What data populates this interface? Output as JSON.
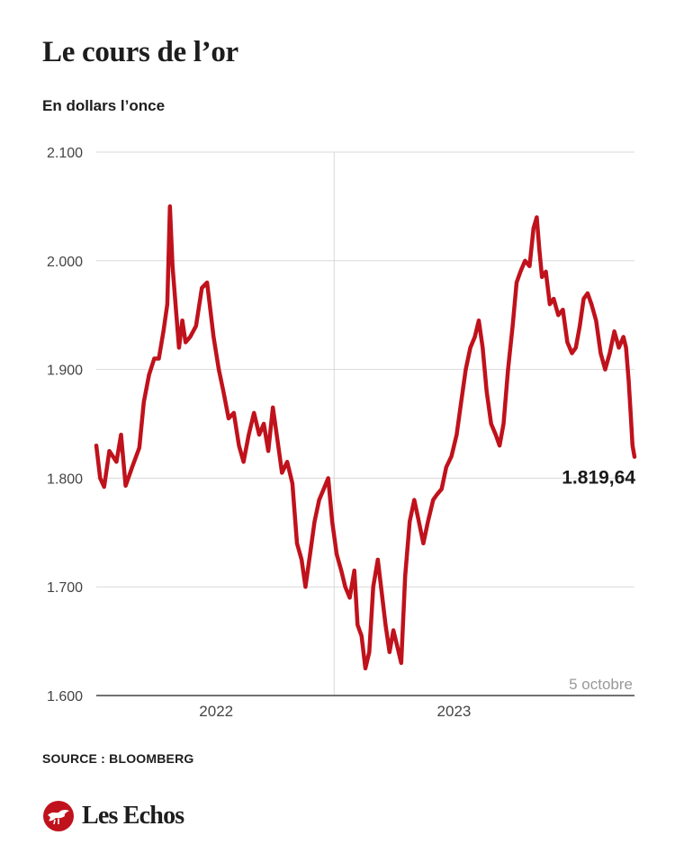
{
  "header": {
    "title": "Le cours de l’or",
    "subtitle": "En dollars l’once"
  },
  "footer": {
    "source": "SOURCE : BLOOMBERG",
    "brand": "Les Echos",
    "logo_icon": "les-echos-bird-icon"
  },
  "colors": {
    "line": "#c0121c",
    "grid": "#d9d9d9",
    "axis": "#444444",
    "tick_text": "#444444",
    "annotation_date": "#999999",
    "brand_red": "#c0121c"
  },
  "chart_data": {
    "type": "line",
    "x_axis_type": "date",
    "ylim": [
      1600,
      2100
    ],
    "xlim": [
      "2021-07-01",
      "2023-10-05"
    ],
    "yticks": [
      {
        "value": 1600,
        "label": "1.600"
      },
      {
        "value": 1700,
        "label": "1.700"
      },
      {
        "value": 1800,
        "label": "1.800"
      },
      {
        "value": 1900,
        "label": "1.900"
      },
      {
        "value": 2000,
        "label": "2.000"
      },
      {
        "value": 2100,
        "label": "2.100"
      }
    ],
    "xticks": [
      {
        "value": "2022-01-01",
        "label": "2022"
      },
      {
        "value": "2023-01-01",
        "label": "2023"
      }
    ],
    "year_divider": "2022-07-01",
    "grid": true,
    "annotations": {
      "last_value_label": "1.819,64",
      "last_date_label": "5 octobre"
    },
    "series": [
      {
        "points": [
          [
            "2021-07-01",
            1830
          ],
          [
            "2021-07-07",
            1800
          ],
          [
            "2021-07-13",
            1792
          ],
          [
            "2021-07-21",
            1825
          ],
          [
            "2021-08-01",
            1815
          ],
          [
            "2021-08-08",
            1840
          ],
          [
            "2021-08-15",
            1793
          ],
          [
            "2021-08-25",
            1810
          ],
          [
            "2021-09-05",
            1828
          ],
          [
            "2021-09-12",
            1870
          ],
          [
            "2021-09-20",
            1895
          ],
          [
            "2021-09-28",
            1910
          ],
          [
            "2021-10-05",
            1910
          ],
          [
            "2021-10-12",
            1935
          ],
          [
            "2021-10-18",
            1960
          ],
          [
            "2021-10-22",
            2050
          ],
          [
            "2021-10-26",
            1995
          ],
          [
            "2021-11-01",
            1950
          ],
          [
            "2021-11-05",
            1920
          ],
          [
            "2021-11-10",
            1945
          ],
          [
            "2021-11-15",
            1925
          ],
          [
            "2021-11-22",
            1930
          ],
          [
            "2021-12-01",
            1940
          ],
          [
            "2021-12-10",
            1975
          ],
          [
            "2021-12-18",
            1980
          ],
          [
            "2021-12-28",
            1930
          ],
          [
            "2022-01-05",
            1900
          ],
          [
            "2022-01-12",
            1880
          ],
          [
            "2022-01-20",
            1855
          ],
          [
            "2022-01-28",
            1860
          ],
          [
            "2022-02-05",
            1830
          ],
          [
            "2022-02-12",
            1815
          ],
          [
            "2022-02-20",
            1840
          ],
          [
            "2022-02-28",
            1860
          ],
          [
            "2022-03-08",
            1840
          ],
          [
            "2022-03-15",
            1850
          ],
          [
            "2022-03-22",
            1825
          ],
          [
            "2022-03-29",
            1865
          ],
          [
            "2022-04-05",
            1835
          ],
          [
            "2022-04-12",
            1805
          ],
          [
            "2022-04-20",
            1815
          ],
          [
            "2022-04-28",
            1795
          ],
          [
            "2022-05-05",
            1740
          ],
          [
            "2022-05-12",
            1725
          ],
          [
            "2022-05-18",
            1700
          ],
          [
            "2022-05-25",
            1730
          ],
          [
            "2022-06-01",
            1760
          ],
          [
            "2022-06-08",
            1780
          ],
          [
            "2022-06-15",
            1790
          ],
          [
            "2022-06-22",
            1800
          ],
          [
            "2022-06-28",
            1760
          ],
          [
            "2022-07-05",
            1730
          ],
          [
            "2022-07-12",
            1715
          ],
          [
            "2022-07-18",
            1700
          ],
          [
            "2022-07-25",
            1690
          ],
          [
            "2022-08-01",
            1715
          ],
          [
            "2022-08-06",
            1665
          ],
          [
            "2022-08-12",
            1655
          ],
          [
            "2022-08-18",
            1625
          ],
          [
            "2022-08-24",
            1640
          ],
          [
            "2022-08-30",
            1700
          ],
          [
            "2022-09-06",
            1725
          ],
          [
            "2022-09-12",
            1695
          ],
          [
            "2022-09-18",
            1665
          ],
          [
            "2022-09-24",
            1640
          ],
          [
            "2022-09-30",
            1660
          ],
          [
            "2022-10-06",
            1645
          ],
          [
            "2022-10-12",
            1630
          ],
          [
            "2022-10-18",
            1710
          ],
          [
            "2022-10-25",
            1760
          ],
          [
            "2022-11-01",
            1780
          ],
          [
            "2022-11-08",
            1760
          ],
          [
            "2022-11-15",
            1740
          ],
          [
            "2022-11-22",
            1760
          ],
          [
            "2022-11-30",
            1780
          ],
          [
            "2022-12-06",
            1785
          ],
          [
            "2022-12-13",
            1790
          ],
          [
            "2022-12-20",
            1810
          ],
          [
            "2022-12-28",
            1820
          ],
          [
            "2023-01-05",
            1840
          ],
          [
            "2023-01-12",
            1870
          ],
          [
            "2023-01-19",
            1900
          ],
          [
            "2023-01-26",
            1920
          ],
          [
            "2023-02-02",
            1930
          ],
          [
            "2023-02-08",
            1945
          ],
          [
            "2023-02-14",
            1920
          ],
          [
            "2023-02-20",
            1880
          ],
          [
            "2023-02-27",
            1850
          ],
          [
            "2023-03-06",
            1840
          ],
          [
            "2023-03-12",
            1830
          ],
          [
            "2023-03-18",
            1850
          ],
          [
            "2023-03-25",
            1900
          ],
          [
            "2023-04-01",
            1940
          ],
          [
            "2023-04-07",
            1980
          ],
          [
            "2023-04-13",
            1990
          ],
          [
            "2023-04-20",
            2000
          ],
          [
            "2023-04-27",
            1995
          ],
          [
            "2023-05-03",
            2030
          ],
          [
            "2023-05-08",
            2040
          ],
          [
            "2023-05-12",
            2010
          ],
          [
            "2023-05-16",
            1985
          ],
          [
            "2023-05-22",
            1990
          ],
          [
            "2023-05-28",
            1960
          ],
          [
            "2023-06-03",
            1965
          ],
          [
            "2023-06-10",
            1950
          ],
          [
            "2023-06-17",
            1955
          ],
          [
            "2023-06-24",
            1925
          ],
          [
            "2023-07-01",
            1915
          ],
          [
            "2023-07-07",
            1920
          ],
          [
            "2023-07-13",
            1940
          ],
          [
            "2023-07-19",
            1965
          ],
          [
            "2023-07-25",
            1970
          ],
          [
            "2023-07-31",
            1960
          ],
          [
            "2023-08-07",
            1945
          ],
          [
            "2023-08-14",
            1915
          ],
          [
            "2023-08-21",
            1900
          ],
          [
            "2023-08-28",
            1915
          ],
          [
            "2023-09-04",
            1935
          ],
          [
            "2023-09-11",
            1920
          ],
          [
            "2023-09-18",
            1930
          ],
          [
            "2023-09-22",
            1920
          ],
          [
            "2023-09-26",
            1890
          ],
          [
            "2023-09-29",
            1860
          ],
          [
            "2023-10-02",
            1830
          ],
          [
            "2023-10-05",
            1819.64
          ]
        ]
      }
    ]
  }
}
